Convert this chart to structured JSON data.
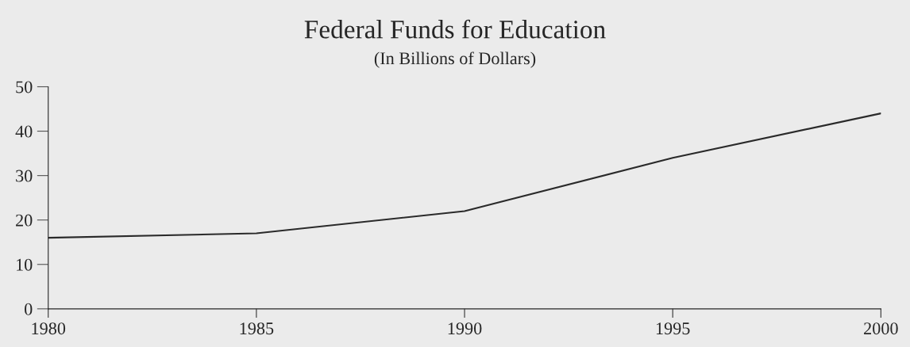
{
  "chart_data": {
    "type": "line",
    "title": "Federal Funds for Education",
    "subtitle": "(In Billions of Dollars)",
    "x": [
      1980,
      1985,
      1990,
      1995,
      2000
    ],
    "series": [
      {
        "color": "#2a2a2a",
        "values": [
          16,
          17,
          22,
          34,
          44
        ]
      }
    ],
    "xlim": [
      1980,
      2000
    ],
    "xticks": [
      1980,
      1985,
      1990,
      1995,
      2000
    ],
    "ylim": [
      0,
      50
    ],
    "yticks": [
      0,
      10,
      20,
      30,
      40,
      50
    ],
    "grid": false,
    "marker": "none",
    "line_style": "solid"
  }
}
